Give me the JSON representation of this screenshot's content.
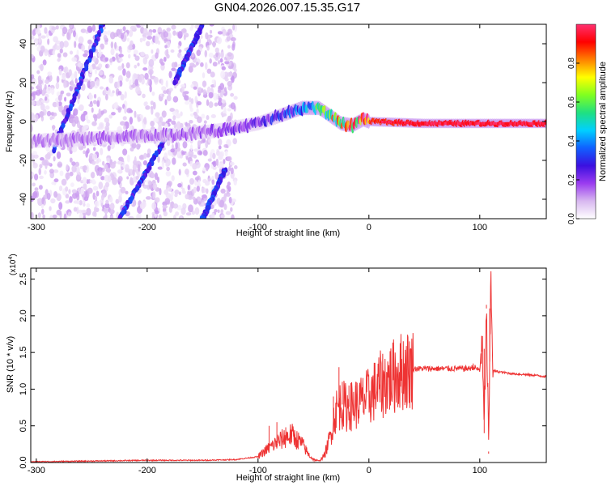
{
  "title": "GN04.2026.007.15.35.G17",
  "chart_data": [
    {
      "type": "heatmap",
      "xlabel": "Height of straight line (km)",
      "ylabel": "Frequency (Hz)",
      "xlim": [
        -305,
        160
      ],
      "ylim": [
        -50,
        50
      ],
      "xticks": [
        -300,
        -200,
        -100,
        0,
        100
      ],
      "yticks": [
        -40,
        -20,
        0,
        20,
        40
      ],
      "colorbar": {
        "label": "Normalized spectral amplitude",
        "range": [
          0,
          1
        ],
        "ticks": [
          "0.0",
          "0.2",
          "0.4",
          "0.6",
          "0.8"
        ],
        "colors": [
          "#ffffff",
          "#d8b8f0",
          "#9b3cf0",
          "#3b10e0",
          "#1060ff",
          "#00d0ff",
          "#20e080",
          "#80ff20",
          "#ffff00",
          "#ff8000",
          "#ff0000",
          "#ff3070"
        ]
      },
      "ridge": [
        {
          "x": -300,
          "y": -10,
          "amp": 0.15
        },
        {
          "x": -260,
          "y": -9,
          "amp": 0.15
        },
        {
          "x": -220,
          "y": -8,
          "amp": 0.15
        },
        {
          "x": -180,
          "y": -7,
          "amp": 0.16
        },
        {
          "x": -140,
          "y": -5,
          "amp": 0.18
        },
        {
          "x": -100,
          "y": -1,
          "amp": 0.22
        },
        {
          "x": -80,
          "y": 3,
          "amp": 0.3
        },
        {
          "x": -60,
          "y": 7,
          "amp": 0.4
        },
        {
          "x": -45,
          "y": 7,
          "amp": 0.55
        },
        {
          "x": -35,
          "y": 3,
          "amp": 0.7
        },
        {
          "x": -25,
          "y": -1,
          "amp": 0.8
        },
        {
          "x": -15,
          "y": -2,
          "amp": 0.85
        },
        {
          "x": -5,
          "y": 1,
          "amp": 0.85
        },
        {
          "x": 0,
          "y": 0,
          "amp": 0.9
        },
        {
          "x": 50,
          "y": -1,
          "amp": 0.95
        },
        {
          "x": 100,
          "y": -1,
          "amp": 0.95
        },
        {
          "x": 160,
          "y": -1,
          "amp": 0.95
        }
      ],
      "diagonal_tracks": [
        {
          "x_start": -240,
          "y_start": 50,
          "x_end": -285,
          "y_end": -15
        },
        {
          "x_start": -150,
          "y_start": 50,
          "x_end": -175,
          "y_end": 20
        },
        {
          "x_start": -180,
          "y_start": -5,
          "x_end": -225,
          "y_end": -50
        },
        {
          "x_start": -130,
          "y_start": -25,
          "x_end": -150,
          "y_end": -50
        }
      ]
    },
    {
      "type": "line",
      "xlabel": "Height of straight line (km)",
      "ylabel": "SNR (10 * v/v)",
      "y_multiplier": "(x10",
      "y_multiplier_exp": "4",
      "y_multiplier_close": ")",
      "xlim": [
        -305,
        160
      ],
      "ylim": [
        0,
        2.65
      ],
      "xticks": [
        -300,
        -200,
        -100,
        0,
        100
      ],
      "yticks": [
        "0.0",
        "0.5",
        "1.0",
        "1.5",
        "2.0",
        "2.5"
      ],
      "color": "#ee3333",
      "x": [
        -305,
        -250,
        -200,
        -150,
        -120,
        -100,
        -90,
        -80,
        -70,
        -60,
        -55,
        -50,
        -45,
        -40,
        -35,
        -30,
        -25,
        -20,
        -10,
        0,
        10,
        20,
        30,
        40,
        50,
        60,
        70,
        80,
        90,
        95,
        100,
        102,
        104,
        106,
        108,
        110,
        112,
        120,
        130,
        140,
        150,
        160
      ],
      "y": [
        0.01,
        0.02,
        0.03,
        0.03,
        0.04,
        0.08,
        0.2,
        0.3,
        0.38,
        0.25,
        0.12,
        0.04,
        0.02,
        0.1,
        0.35,
        0.7,
        0.8,
        0.75,
        0.8,
        0.9,
        1.05,
        1.15,
        1.25,
        1.28,
        1.28,
        1.28,
        1.28,
        1.28,
        1.28,
        1.3,
        1.25,
        1.7,
        0.4,
        2.1,
        0.15,
        2.6,
        1.25,
        1.23,
        1.21,
        1.2,
        1.19,
        1.17
      ],
      "spikes": [
        {
          "x": -90,
          "y": 0.5
        },
        {
          "x": -83,
          "y": 0.55
        },
        {
          "x": -75,
          "y": 0.48
        },
        {
          "x": -68,
          "y": 0.45
        },
        {
          "x": -32,
          "y": 0.9
        },
        {
          "x": -27,
          "y": 1.3
        },
        {
          "x": -24,
          "y": 1.1
        },
        {
          "x": -18,
          "y": 1.05
        },
        {
          "x": -12,
          "y": 1.1
        },
        {
          "x": -6,
          "y": 1.0
        },
        {
          "x": 94,
          "y": 1.35
        },
        {
          "x": 104,
          "y": 1.55
        },
        {
          "x": 106,
          "y": 2.15
        },
        {
          "x": 108,
          "y": 0.12
        },
        {
          "x": 109,
          "y": 2.1
        },
        {
          "x": 110,
          "y": 2.6
        }
      ]
    }
  ]
}
